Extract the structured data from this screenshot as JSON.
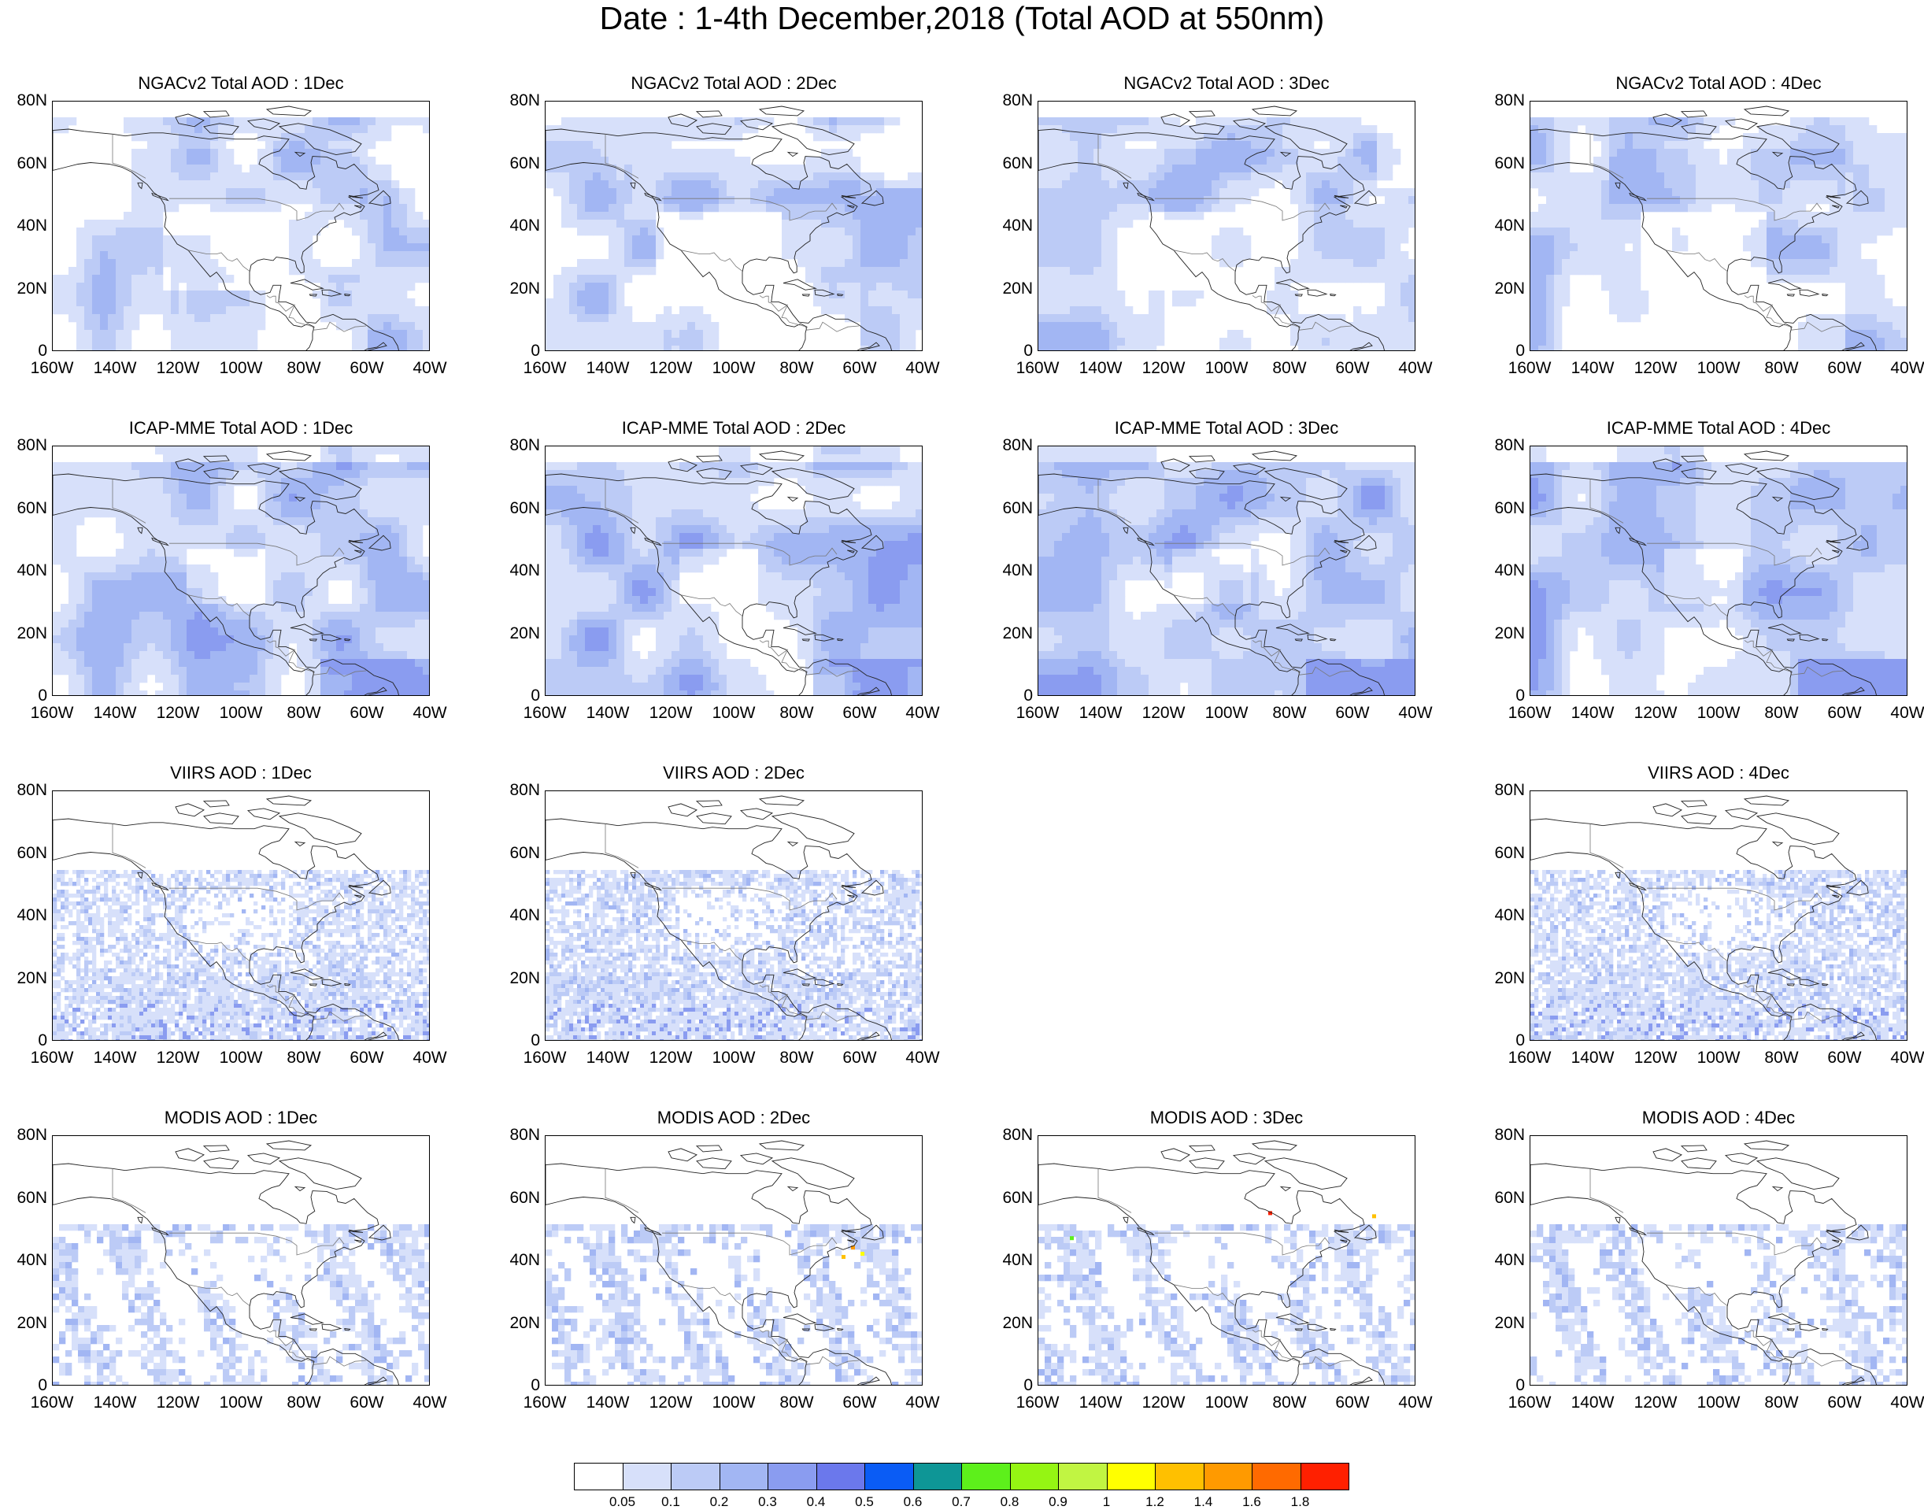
{
  "title": "Date : 1-4th December,2018 (Total AOD at 550nm)",
  "map_axes": {
    "y_ticks": [
      "80N",
      "60N",
      "40N",
      "20N",
      "0"
    ],
    "x_ticks": [
      "160W",
      "140W",
      "120W",
      "100W",
      "80W",
      "60W",
      "40W"
    ],
    "lat_range": [
      0,
      80
    ],
    "lon_range": [
      -160,
      -40
    ]
  },
  "rows": [
    {
      "product": "NGACv2",
      "field_style": "model_smooth",
      "panels": [
        {
          "title": "NGACv2 Total AOD : 1Dec",
          "day": 1
        },
        {
          "title": "NGACv2 Total AOD : 2Dec",
          "day": 2
        },
        {
          "title": "NGACv2 Total AOD : 3Dec",
          "day": 3
        },
        {
          "title": "NGACv2 Total AOD : 4Dec",
          "day": 4
        }
      ]
    },
    {
      "product": "ICAP-MME",
      "field_style": "model_coarse",
      "panels": [
        {
          "title": "ICAP-MME Total AOD : 1Dec",
          "day": 1
        },
        {
          "title": "ICAP-MME Total AOD : 2Dec",
          "day": 2
        },
        {
          "title": "ICAP-MME Total AOD : 3Dec",
          "day": 3
        },
        {
          "title": "ICAP-MME Total AOD : 4Dec",
          "day": 4
        }
      ]
    },
    {
      "product": "VIIRS",
      "field_style": "satellite_speckle",
      "panels": [
        {
          "title": "VIIRS AOD : 1Dec",
          "day": 1
        },
        {
          "title": "VIIRS AOD : 2Dec",
          "day": 2
        },
        null,
        {
          "title": "VIIRS AOD : 4Dec",
          "day": 4
        }
      ]
    },
    {
      "product": "MODIS",
      "field_style": "satellite_swath",
      "panels": [
        {
          "title": "MODIS AOD : 1Dec",
          "day": 1
        },
        {
          "title": "MODIS AOD : 2Dec",
          "day": 2
        },
        {
          "title": "MODIS AOD : 3Dec",
          "day": 3
        },
        {
          "title": "MODIS AOD : 4Dec",
          "day": 4
        }
      ]
    }
  ],
  "colorbar": {
    "labels": [
      "0.05",
      "0.1",
      "0.2",
      "0.3",
      "0.4",
      "0.5",
      "0.6",
      "0.7",
      "0.8",
      "0.9",
      "1",
      "1.2",
      "1.4",
      "1.6",
      "1.8"
    ],
    "colors": [
      "#ffffff",
      "#d7e0fa",
      "#bccbf6",
      "#a2b6f3",
      "#8a9cf0",
      "#6b78ec",
      "#0a5cf5",
      "#0e9696",
      "#5df01b",
      "#95f513",
      "#c1f542",
      "#ffff00",
      "#ffc000",
      "#ff9a00",
      "#ff6a00",
      "#ff2000"
    ]
  }
}
